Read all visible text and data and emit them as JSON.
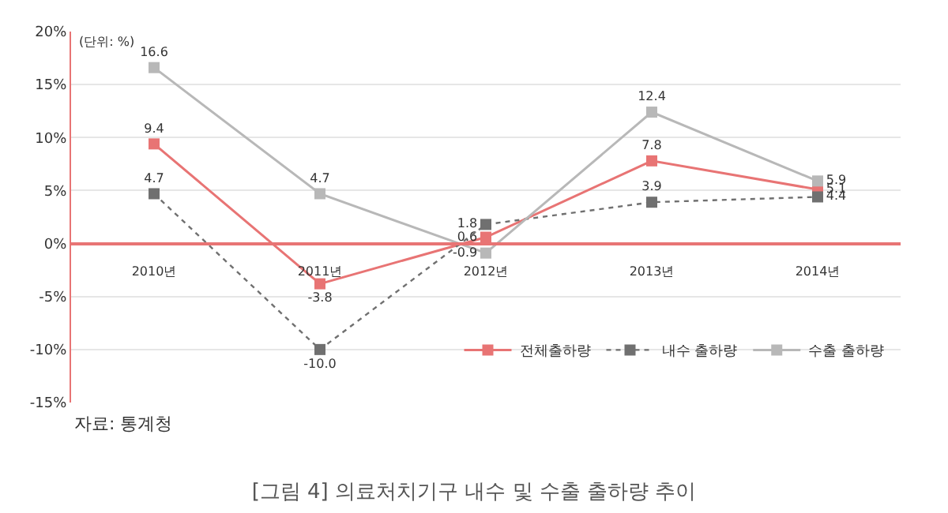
{
  "chart_data": {
    "type": "line",
    "title": "[그림 4] 의료처치기구 내수 및 수출 출하량 추이",
    "categories": [
      "2010년",
      "2011년",
      "2012년",
      "2013년",
      "2014년"
    ],
    "series": [
      {
        "name": "전체출하량",
        "color": "#e87474",
        "values": [
          9.4,
          -3.8,
          0.6,
          7.8,
          5.1
        ],
        "value_labels": [
          "9.4",
          "-3.8",
          "0.6",
          "7.8",
          "5.1"
        ],
        "line_style": "solid"
      },
      {
        "name": "내수 출하량",
        "color": "#707070",
        "values": [
          4.7,
          -10.0,
          1.8,
          3.9,
          4.4
        ],
        "value_labels": [
          "4.7",
          "-10.0",
          "1.8",
          "3.9",
          "4.4"
        ],
        "line_style": "dotted"
      },
      {
        "name": "수출 출하량",
        "color": "#b8b8b8",
        "values": [
          16.6,
          4.7,
          -0.9,
          12.4,
          5.9
        ],
        "value_labels": [
          "16.6",
          "4.7",
          "-0.9",
          "12.4",
          "5.9"
        ],
        "line_style": "solid"
      }
    ],
    "ylim": [
      -15,
      20
    ],
    "yticks": [
      {
        "value": -15,
        "label": "-15%"
      },
      {
        "value": -10,
        "label": "-10%"
      },
      {
        "value": -5,
        "label": "-5%"
      },
      {
        "value": 0,
        "label": "0%"
      },
      {
        "value": 5,
        "label": "5%"
      },
      {
        "value": 10,
        "label": "10%"
      },
      {
        "value": 15,
        "label": "15%"
      },
      {
        "value": 20,
        "label": "20%"
      }
    ],
    "grid": "y",
    "legend": "bottom right",
    "marker": "square",
    "annotations": [
      "(단위: %)",
      "자료: 통계청"
    ]
  }
}
